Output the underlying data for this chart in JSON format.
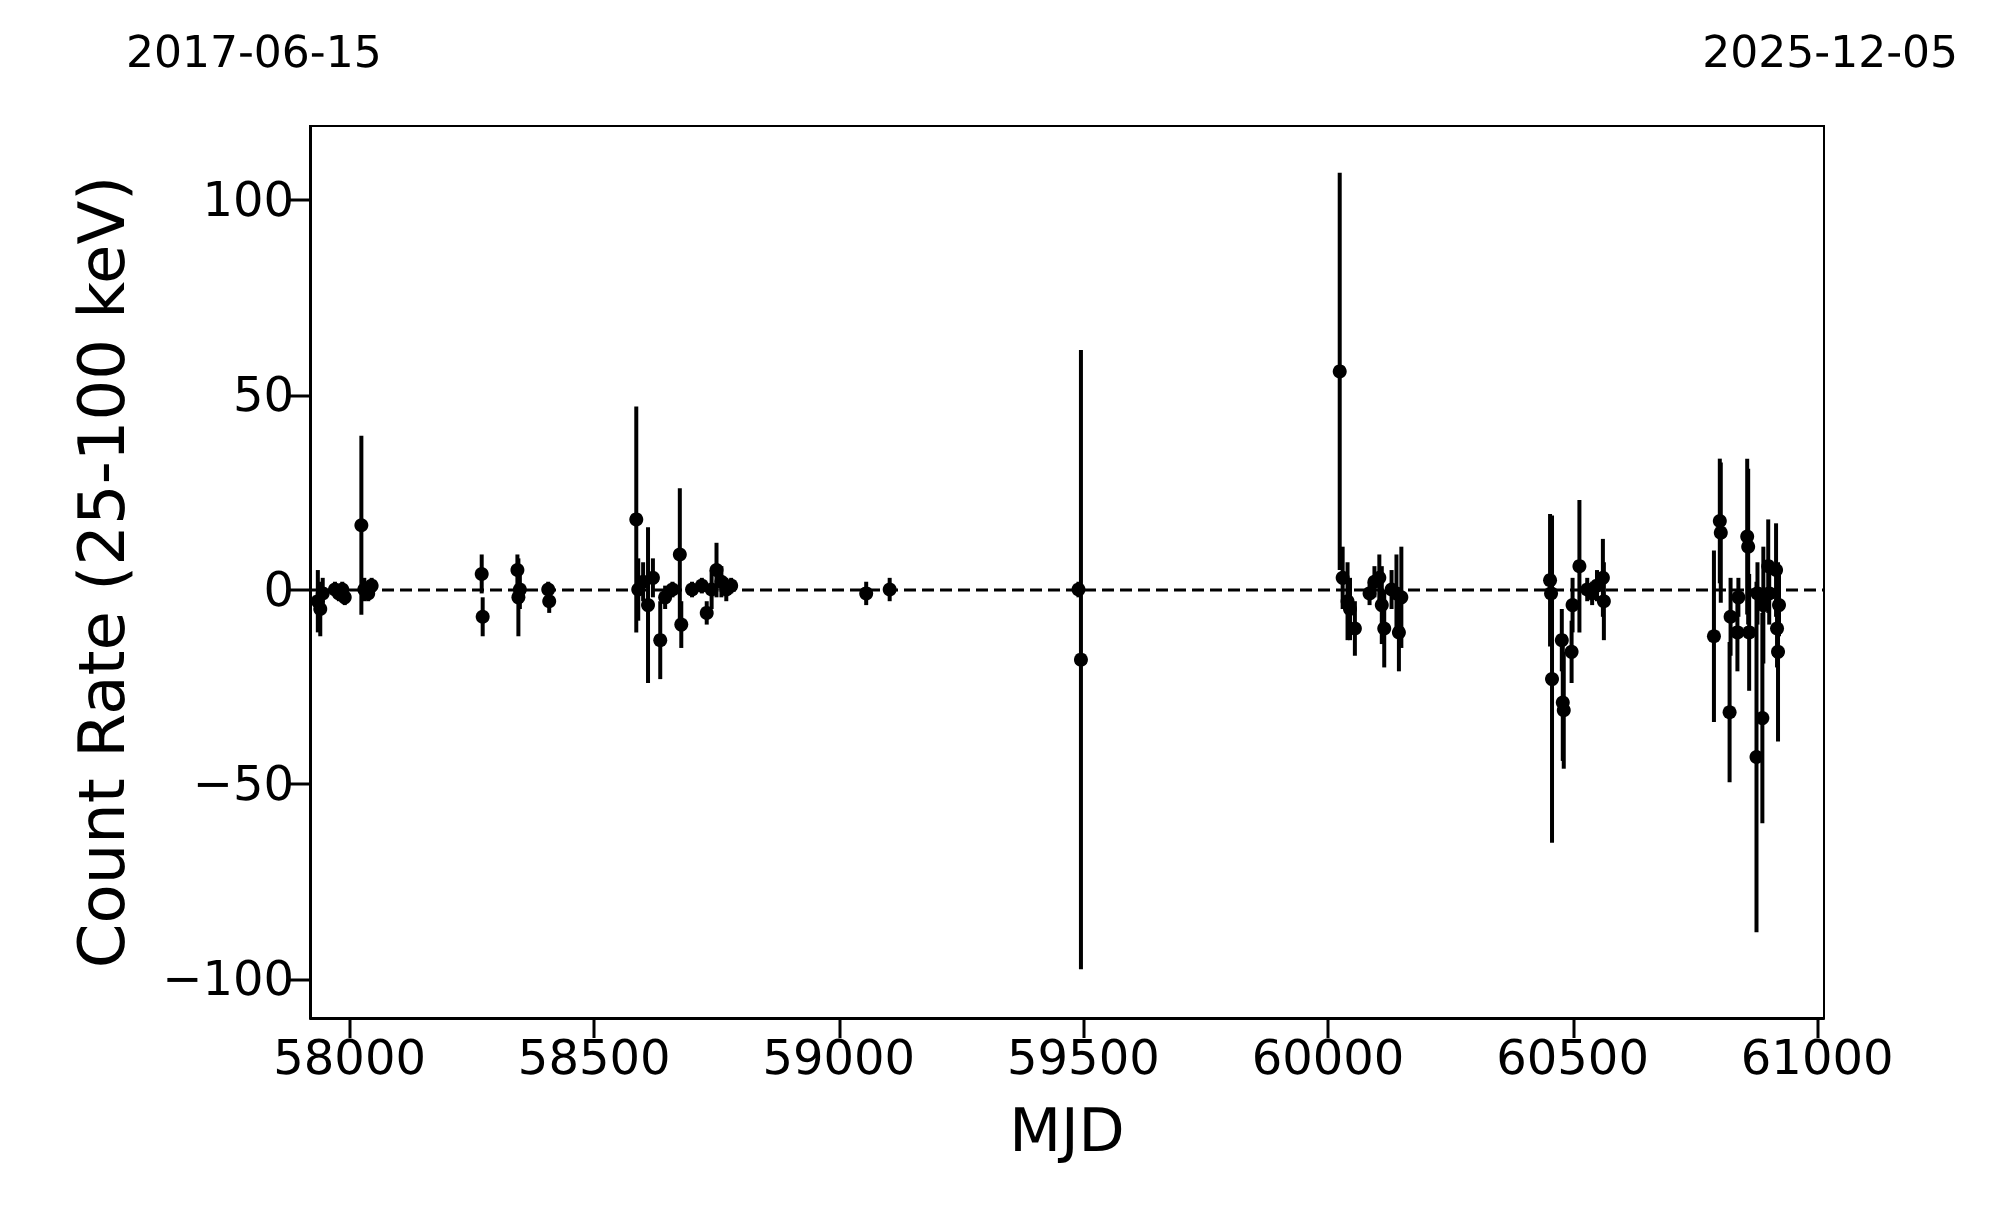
{
  "chart_data": {
    "type": "scatter",
    "xlabel": "MJD",
    "ylabel": "Count Rate (25-100 keV)",
    "xlim": [
      57919,
      61014
    ],
    "ylim": [
      -110,
      119
    ],
    "xticks": [
      58000,
      58500,
      59000,
      59500,
      60000,
      60500,
      61000
    ],
    "yticks": [
      {
        "value": -100,
        "label": "−100"
      },
      {
        "value": -50,
        "label": "−50"
      },
      0,
      50,
      100
    ],
    "annotations": [
      "2017-06-15",
      "2025-12-05"
    ],
    "marker": "circle",
    "ref_lines": [
      {
        "axis": "y",
        "value": 0,
        "line_style": "dashed",
        "color": "#000000"
      }
    ],
    "series": [
      {
        "color": "#000000",
        "x": [
          57935,
          57940,
          57945,
          57970,
          57978,
          57985,
          57990,
          58024,
          58030,
          58038,
          58045,
          58270,
          58272,
          58343,
          58345,
          58348,
          58406,
          58408,
          58586,
          58590,
          58600,
          58610,
          58620,
          58635,
          58645,
          58660,
          58675,
          58678,
          58700,
          58720,
          58730,
          58740,
          58750,
          58760,
          58770,
          58780,
          59056,
          59104,
          59490,
          59495,
          60024,
          60030,
          60040,
          60045,
          60055,
          60085,
          60095,
          60105,
          60110,
          60115,
          60130,
          60140,
          60145,
          60150,
          60454,
          60456,
          60458,
          60478,
          60480,
          60482,
          60498,
          60500,
          60514,
          60530,
          60540,
          60550,
          60562,
          60564,
          60789,
          60801,
          60803,
          60821,
          60823,
          60837,
          60839,
          60857,
          60859,
          60861,
          60876,
          60878,
          60888,
          60890,
          60900,
          60902,
          60916,
          60918,
          60920,
          60922
        ],
        "values": [
          -3,
          -5,
          -1,
          0,
          -1,
          0,
          -2,
          16.5,
          0,
          -1,
          1,
          4,
          -7,
          5,
          -2,
          0,
          0,
          -3,
          18,
          0,
          2,
          -4,
          3,
          -13,
          -2,
          0,
          9,
          -9,
          0,
          1,
          -6,
          0,
          5,
          2,
          0,
          1,
          -1,
          0,
          0,
          -18,
          56,
          3,
          -3,
          -5,
          -10,
          -1,
          2,
          3,
          -4,
          -10,
          0,
          -1,
          -11,
          -2,
          2.4,
          -1,
          -23,
          -13,
          -29,
          -31,
          -16,
          -4,
          6,
          0,
          -1,
          1,
          3,
          -3,
          -12,
          17.6,
          14.6,
          -31.5,
          -7,
          -11,
          -2,
          13.6,
          11,
          -11,
          -43,
          -1,
          -33,
          -4,
          6,
          -1,
          5,
          -10,
          -16,
          -4
        ],
        "errors": [
          8,
          7,
          4,
          2,
          2,
          2,
          2,
          23,
          3,
          2,
          2,
          5,
          5,
          4,
          10,
          5,
          2,
          3,
          29,
          8,
          5,
          20,
          5,
          10,
          3,
          2,
          17,
          6,
          2,
          2,
          3,
          5,
          7,
          4,
          3,
          2,
          3,
          3,
          2,
          79.5,
          51,
          8,
          10,
          8,
          7,
          3,
          4,
          6,
          10,
          10,
          5,
          10,
          10,
          13,
          17,
          3,
          42,
          8,
          15,
          15,
          8,
          7,
          17,
          3,
          3,
          4,
          10,
          10,
          22,
          16,
          18,
          18,
          10,
          10,
          5,
          20,
          20,
          15,
          45,
          8,
          27,
          15,
          12,
          8,
          12,
          10,
          23,
          8
        ]
      }
    ]
  }
}
